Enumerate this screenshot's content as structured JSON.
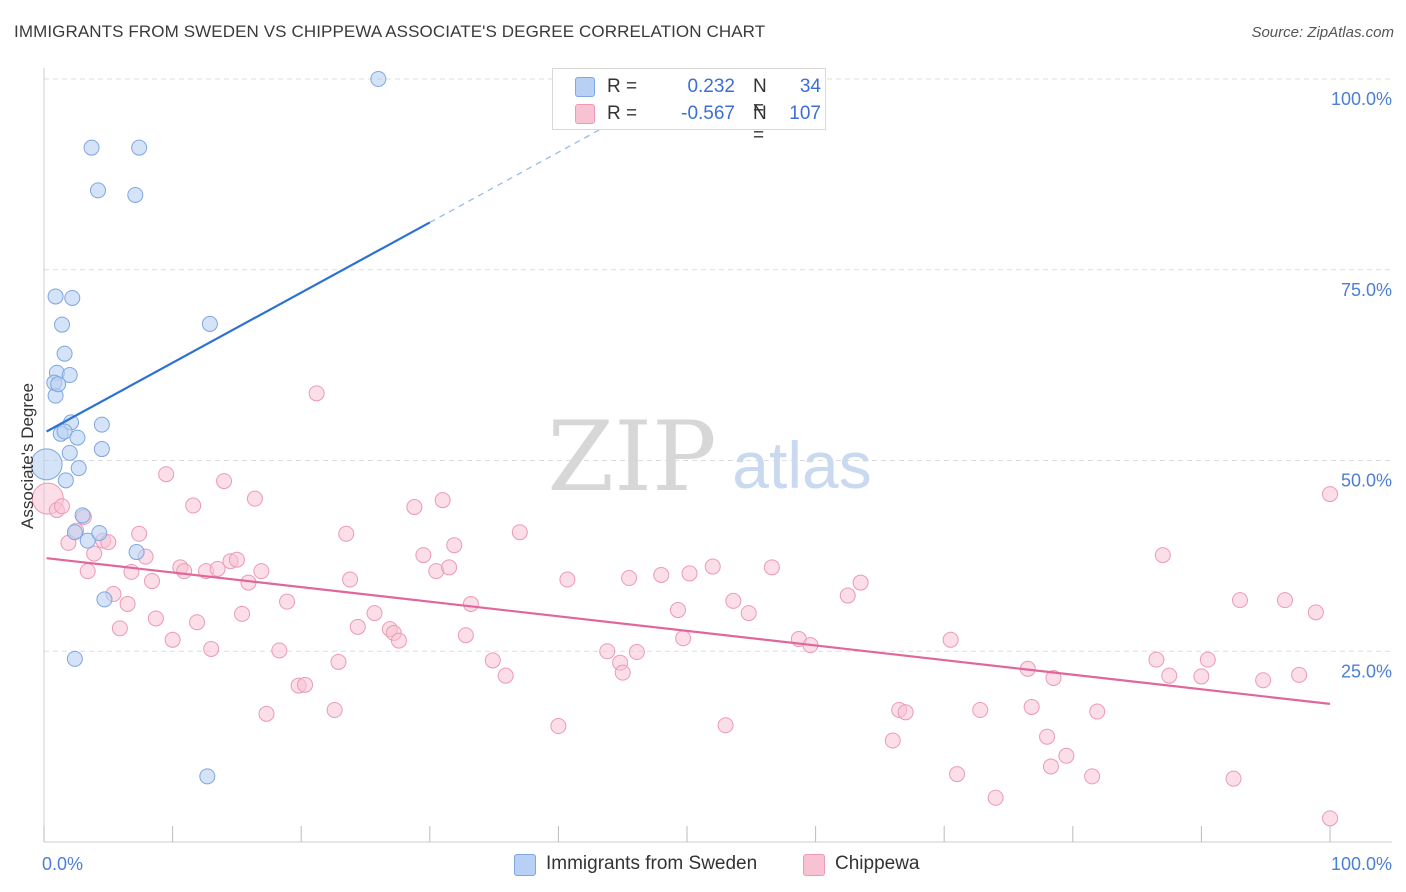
{
  "title": "IMMIGRANTS FROM SWEDEN VS CHIPPEWA ASSOCIATE'S DEGREE CORRELATION CHART",
  "source": "Source: ZipAtlas.com",
  "watermark": {
    "zip": "ZIP",
    "atlas": "atlas"
  },
  "legend": {
    "sweden": {
      "r_label": "R =",
      "r_value": "0.232",
      "n_label": "N =",
      "n_value": "34"
    },
    "chippewa": {
      "r_label": "R =",
      "r_value": "-0.567",
      "n_label": "N =",
      "n_value": "107"
    }
  },
  "bottom_legend": {
    "sweden": "Immigrants from Sweden",
    "chippewa": "Chippewa"
  },
  "colors": {
    "sweden_fill": "#b7d0f3",
    "sweden_stroke": "#7ea6e0",
    "sweden_line": "#2d72d2",
    "chippewa_fill": "#f7c3d3",
    "chippewa_stroke": "#ec9ab5",
    "chippewa_line": "#e0679a",
    "tick_label": "#4b7fd6",
    "grid": "#dddddd"
  },
  "chart_data": {
    "type": "scatter",
    "ylabel": "Associate's Degree",
    "xlim": [
      0,
      100
    ],
    "ylim": [
      0,
      100
    ],
    "x_tick_labels": [
      {
        "value": 0,
        "label": "0.0%"
      },
      {
        "value": 100,
        "label": "100.0%"
      }
    ],
    "y_tick_labels": [
      {
        "value": 25,
        "label": "25.0%"
      },
      {
        "value": 50,
        "label": "50.0%"
      },
      {
        "value": 75,
        "label": "75.0%"
      },
      {
        "value": 100,
        "label": "100.0%"
      }
    ],
    "grid": true,
    "series": [
      {
        "name": "Immigrants from Sweden",
        "trend": {
          "x0": 0.2,
          "y0": 53.8,
          "x1": 30,
          "y1": 81.2,
          "x_dash_end": 45,
          "y_dash_end": 95
        },
        "points": [
          [
            0.2,
            49.5,
            24
          ],
          [
            1.0,
            61.5,
            12
          ],
          [
            0.9,
            58.5,
            12
          ],
          [
            0.8,
            60.2,
            12
          ],
          [
            0.9,
            71.5,
            12
          ],
          [
            2.2,
            71.3,
            12
          ],
          [
            1.4,
            67.8,
            12
          ],
          [
            1.6,
            64.0,
            12
          ],
          [
            2.0,
            61.2,
            12
          ],
          [
            1.1,
            60.0,
            12
          ],
          [
            1.3,
            53.5,
            12
          ],
          [
            2.1,
            55.0,
            12
          ],
          [
            1.6,
            53.8,
            12
          ],
          [
            2.6,
            53.0,
            12
          ],
          [
            2.0,
            51.0,
            12
          ],
          [
            4.5,
            54.7,
            12
          ],
          [
            4.5,
            51.5,
            12
          ],
          [
            2.7,
            49.0,
            12
          ],
          [
            1.7,
            47.4,
            12
          ],
          [
            3.0,
            42.8,
            12
          ],
          [
            3.4,
            39.5,
            12
          ],
          [
            2.4,
            40.6,
            12
          ],
          [
            4.3,
            40.5,
            12
          ],
          [
            7.2,
            38.0,
            12
          ],
          [
            4.7,
            31.8,
            12
          ],
          [
            2.4,
            24.0,
            12
          ],
          [
            12.9,
            67.9,
            12
          ],
          [
            3.7,
            91.0,
            12
          ],
          [
            7.4,
            91.0,
            12
          ],
          [
            4.2,
            85.4,
            12
          ],
          [
            7.1,
            84.8,
            12
          ],
          [
            26.0,
            100.0,
            12
          ],
          [
            12.7,
            8.6,
            12
          ]
        ]
      },
      {
        "name": "Chippewa",
        "trend": {
          "x0": 0.2,
          "y0": 37.2,
          "x1": 100,
          "y1": 18.1
        },
        "points": [
          [
            0.3,
            45.0,
            24
          ],
          [
            1.0,
            43.5,
            12
          ],
          [
            1.4,
            44.0,
            12
          ],
          [
            2.5,
            40.8,
            12
          ],
          [
            3.1,
            42.6,
            12
          ],
          [
            1.9,
            39.2,
            12
          ],
          [
            3.4,
            35.5,
            12
          ],
          [
            3.9,
            37.8,
            12
          ],
          [
            4.6,
            39.5,
            12
          ],
          [
            5.0,
            39.3,
            12
          ],
          [
            5.4,
            32.5,
            12
          ],
          [
            5.9,
            28.0,
            12
          ],
          [
            6.5,
            31.2,
            12
          ],
          [
            6.8,
            35.4,
            12
          ],
          [
            7.4,
            40.4,
            12
          ],
          [
            7.9,
            37.4,
            12
          ],
          [
            8.4,
            34.2,
            12
          ],
          [
            8.7,
            29.3,
            12
          ],
          [
            9.5,
            48.2,
            12
          ],
          [
            10.0,
            26.5,
            12
          ],
          [
            10.6,
            36.0,
            12
          ],
          [
            10.9,
            35.5,
            12
          ],
          [
            11.6,
            44.1,
            12
          ],
          [
            11.9,
            28.8,
            12
          ],
          [
            12.6,
            35.5,
            12
          ],
          [
            13.0,
            25.3,
            12
          ],
          [
            13.5,
            35.8,
            12
          ],
          [
            14.0,
            47.3,
            12
          ],
          [
            14.5,
            36.8,
            12
          ],
          [
            15.0,
            37.0,
            12
          ],
          [
            15.4,
            29.9,
            12
          ],
          [
            15.9,
            34.0,
            12
          ],
          [
            16.4,
            45.0,
            12
          ],
          [
            16.9,
            35.5,
            12
          ],
          [
            17.3,
            16.8,
            12
          ],
          [
            18.3,
            25.1,
            12
          ],
          [
            18.9,
            31.5,
            12
          ],
          [
            19.8,
            20.5,
            12
          ],
          [
            20.3,
            20.6,
            12
          ],
          [
            21.2,
            58.8,
            12
          ],
          [
            22.6,
            17.3,
            12
          ],
          [
            22.9,
            23.6,
            12
          ],
          [
            23.5,
            40.4,
            12
          ],
          [
            23.8,
            34.4,
            12
          ],
          [
            24.4,
            28.2,
            12
          ],
          [
            25.7,
            30.0,
            12
          ],
          [
            26.9,
            27.9,
            12
          ],
          [
            27.2,
            27.4,
            12
          ],
          [
            27.6,
            26.4,
            12
          ],
          [
            28.8,
            43.9,
            12
          ],
          [
            29.5,
            37.6,
            12
          ],
          [
            30.5,
            35.5,
            12
          ],
          [
            31.0,
            44.8,
            12
          ],
          [
            31.5,
            36.0,
            12
          ],
          [
            31.9,
            38.9,
            12
          ],
          [
            32.8,
            27.1,
            12
          ],
          [
            33.2,
            31.2,
            12
          ],
          [
            34.9,
            23.8,
            12
          ],
          [
            35.9,
            21.8,
            12
          ],
          [
            37.0,
            40.6,
            12
          ],
          [
            40.0,
            15.2,
            12
          ],
          [
            40.7,
            34.4,
            12
          ],
          [
            43.8,
            25.0,
            12
          ],
          [
            44.8,
            23.5,
            12
          ],
          [
            45.0,
            22.2,
            12
          ],
          [
            45.5,
            34.6,
            12
          ],
          [
            46.1,
            24.9,
            12
          ],
          [
            48.0,
            35.0,
            12
          ],
          [
            49.3,
            30.4,
            12
          ],
          [
            49.7,
            26.7,
            12
          ],
          [
            50.2,
            35.2,
            12
          ],
          [
            52.0,
            36.1,
            12
          ],
          [
            53.0,
            15.3,
            12
          ],
          [
            53.6,
            31.6,
            12
          ],
          [
            54.8,
            30.0,
            12
          ],
          [
            56.6,
            36.0,
            12
          ],
          [
            58.7,
            26.6,
            12
          ],
          [
            59.6,
            25.8,
            12
          ],
          [
            62.5,
            32.3,
            12
          ],
          [
            63.5,
            34.0,
            12
          ],
          [
            66.0,
            13.3,
            12
          ],
          [
            66.5,
            17.3,
            12
          ],
          [
            67.0,
            17.0,
            12
          ],
          [
            70.5,
            26.5,
            12
          ],
          [
            71.0,
            8.9,
            12
          ],
          [
            72.8,
            17.3,
            12
          ],
          [
            74.0,
            5.8,
            12
          ],
          [
            76.5,
            22.7,
            12
          ],
          [
            76.8,
            17.7,
            12
          ],
          [
            78.0,
            13.8,
            12
          ],
          [
            78.3,
            9.9,
            12
          ],
          [
            78.5,
            21.5,
            12
          ],
          [
            79.5,
            11.3,
            12
          ],
          [
            81.5,
            8.6,
            12
          ],
          [
            81.9,
            17.1,
            12
          ],
          [
            86.5,
            23.9,
            12
          ],
          [
            87.0,
            37.6,
            12
          ],
          [
            87.5,
            21.8,
            12
          ],
          [
            90.0,
            21.7,
            12
          ],
          [
            90.5,
            23.9,
            12
          ],
          [
            92.5,
            8.3,
            12
          ],
          [
            93.0,
            31.7,
            12
          ],
          [
            94.8,
            21.2,
            12
          ],
          [
            96.5,
            31.7,
            12
          ],
          [
            97.6,
            21.9,
            12
          ],
          [
            98.9,
            30.1,
            12
          ],
          [
            100.0,
            45.6,
            12
          ],
          [
            100.0,
            3.1,
            12
          ]
        ]
      }
    ]
  }
}
